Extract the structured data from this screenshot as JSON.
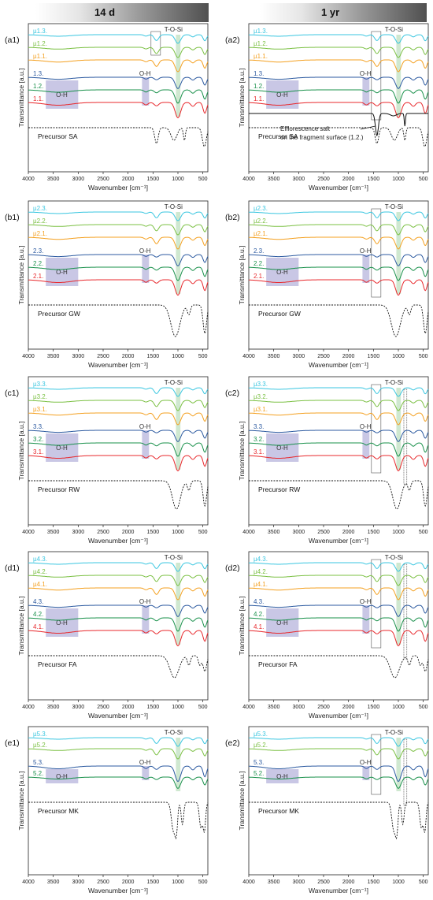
{
  "headers": {
    "left": "14 d",
    "right": "1 yr"
  },
  "colors": {
    "cyan": "#39c6e0",
    "lightgreen": "#7bc043",
    "orange": "#f4a020",
    "blue": "#2c5aa0",
    "green": "#18904a",
    "red": "#e8282c",
    "black": "#111111",
    "dotted": "#111111",
    "oh_box": "#b7b4dc",
    "tosi_box": "#bfe0c0"
  },
  "annotations": {
    "oh": "O-H",
    "tosi": "T-O-Si",
    "efflorescence": "Efflorescence salt on the fragment surface (1.2.)"
  },
  "chart_data": [
    {
      "type": "line",
      "panel": "(a1)",
      "precursor": "Precursor SA",
      "xlabel": "Wavenumber [cm⁻¹]",
      "ylabel": "Transmittance [a.u.]",
      "xlim": [
        4000,
        400
      ],
      "xticks": [
        4000,
        3500,
        3000,
        2500,
        2000,
        1500,
        1000,
        500
      ],
      "series": [
        {
          "name": "µ1.3.",
          "color": "cyan"
        },
        {
          "name": "µ1.2.",
          "color": "lightgreen"
        },
        {
          "name": "µ1.1.",
          "color": "orange"
        },
        {
          "name": "1.3.",
          "color": "blue"
        },
        {
          "name": "1.2.",
          "color": "green"
        },
        {
          "name": "1.1.",
          "color": "red"
        }
      ]
    },
    {
      "type": "line",
      "panel": "(a2)",
      "precursor": "Precursor SA",
      "xlabel": "Wavenumber [cm⁻¹]",
      "ylabel": "Transmittance [a.u.]",
      "xlim": [
        4000,
        400
      ],
      "xticks": [
        4000,
        3500,
        3000,
        2500,
        2000,
        1500,
        1000,
        500
      ],
      "series": [
        {
          "name": "µ1.3.",
          "color": "cyan"
        },
        {
          "name": "µ1.2.",
          "color": "lightgreen"
        },
        {
          "name": "µ1.1.",
          "color": "orange"
        },
        {
          "name": "1.3.",
          "color": "blue"
        },
        {
          "name": "1.2.",
          "color": "green"
        },
        {
          "name": "1.1.",
          "color": "red"
        }
      ]
    },
    {
      "type": "line",
      "panel": "(b1)",
      "precursor": "Precursor GW",
      "xlabel": "Wavenumber [cm⁻¹]",
      "ylabel": "Transmittance [a.u.]",
      "xlim": [
        4000,
        400
      ],
      "xticks": [
        4000,
        3500,
        3000,
        2500,
        2000,
        1500,
        1000,
        500
      ],
      "series": [
        {
          "name": "µ2.3.",
          "color": "cyan"
        },
        {
          "name": "µ2.2.",
          "color": "lightgreen"
        },
        {
          "name": "µ2.1.",
          "color": "orange"
        },
        {
          "name": "2.3.",
          "color": "blue"
        },
        {
          "name": "2.2.",
          "color": "green"
        },
        {
          "name": "2.1.",
          "color": "red"
        }
      ]
    },
    {
      "type": "line",
      "panel": "(b2)",
      "precursor": "Precursor GW",
      "xlabel": "Wavenumber [cm⁻¹]",
      "ylabel": "Transmittance [a.u.]",
      "xlim": [
        4000,
        400
      ],
      "xticks": [
        4000,
        3500,
        3000,
        2500,
        2000,
        1500,
        1000,
        500
      ],
      "series": [
        {
          "name": "µ2.3.",
          "color": "cyan"
        },
        {
          "name": "µ2.2.",
          "color": "lightgreen"
        },
        {
          "name": "µ2.1.",
          "color": "orange"
        },
        {
          "name": "2.3.",
          "color": "blue"
        },
        {
          "name": "2.2.",
          "color": "green"
        },
        {
          "name": "2.1.",
          "color": "red"
        }
      ]
    },
    {
      "type": "line",
      "panel": "(c1)",
      "precursor": "Precursor RW",
      "xlabel": "Wavenumber [cm⁻¹]",
      "ylabel": "Transmittance [a.u.]",
      "xlim": [
        4000,
        400
      ],
      "xticks": [
        4000,
        3500,
        3000,
        2500,
        2000,
        1500,
        1000,
        500
      ],
      "series": [
        {
          "name": "µ3.3.",
          "color": "cyan"
        },
        {
          "name": "µ3.2.",
          "color": "lightgreen"
        },
        {
          "name": "µ3.1.",
          "color": "orange"
        },
        {
          "name": "3.3.",
          "color": "blue"
        },
        {
          "name": "3.2.",
          "color": "green"
        },
        {
          "name": "3.1.",
          "color": "red"
        }
      ]
    },
    {
      "type": "line",
      "panel": "(c2)",
      "precursor": "Precursor RW",
      "xlabel": "Wavenumber [cm⁻¹]",
      "ylabel": "Transmittance [a.u.]",
      "xlim": [
        4000,
        400
      ],
      "xticks": [
        4000,
        3500,
        3000,
        2500,
        2000,
        1500,
        1000,
        500
      ],
      "series": [
        {
          "name": "µ3.3.",
          "color": "cyan"
        },
        {
          "name": "µ3.2.",
          "color": "lightgreen"
        },
        {
          "name": "µ3.1.",
          "color": "orange"
        },
        {
          "name": "3.3.",
          "color": "blue"
        },
        {
          "name": "3.2.",
          "color": "green"
        },
        {
          "name": "3.1.",
          "color": "red"
        }
      ]
    },
    {
      "type": "line",
      "panel": "(d1)",
      "precursor": "Precursor FA",
      "xlabel": "Wavenumber [cm⁻¹]",
      "ylabel": "Transmittance [a.u.]",
      "xlim": [
        4000,
        400
      ],
      "xticks": [
        4000,
        3500,
        3000,
        2500,
        2000,
        1500,
        1000,
        500
      ],
      "series": [
        {
          "name": "µ4.3.",
          "color": "cyan"
        },
        {
          "name": "µ4.2.",
          "color": "lightgreen"
        },
        {
          "name": "µ4.1.",
          "color": "orange"
        },
        {
          "name": "4.3.",
          "color": "blue"
        },
        {
          "name": "4.2.",
          "color": "green"
        },
        {
          "name": "4.1.",
          "color": "red"
        }
      ]
    },
    {
      "type": "line",
      "panel": "(d2)",
      "precursor": "Precursor FA",
      "xlabel": "Wavenumber [cm⁻¹]",
      "ylabel": "Transmittance [a.u.]",
      "xlim": [
        4000,
        400
      ],
      "xticks": [
        4000,
        3500,
        3000,
        2500,
        2000,
        1500,
        1000,
        500
      ],
      "series": [
        {
          "name": "µ4.3.",
          "color": "cyan"
        },
        {
          "name": "µ4.2.",
          "color": "lightgreen"
        },
        {
          "name": "µ4.1.",
          "color": "orange"
        },
        {
          "name": "4.3.",
          "color": "blue"
        },
        {
          "name": "4.2.",
          "color": "green"
        },
        {
          "name": "4.1.",
          "color": "red"
        }
      ]
    },
    {
      "type": "line",
      "panel": "(e1)",
      "precursor": "Precursor MK",
      "xlabel": "Wavenumber [cm⁻¹]",
      "ylabel": "Transmittance [a.u.]",
      "xlim": [
        4000,
        400
      ],
      "xticks": [
        4000,
        3500,
        3000,
        2500,
        2000,
        1500,
        1000,
        500
      ],
      "series": [
        {
          "name": "µ5.3.",
          "color": "cyan"
        },
        {
          "name": "µ5.2.",
          "color": "lightgreen"
        },
        {
          "name": "5.3.",
          "color": "blue"
        },
        {
          "name": "5.2.",
          "color": "green"
        }
      ]
    },
    {
      "type": "line",
      "panel": "(e2)",
      "precursor": "Precursor MK",
      "xlabel": "Wavenumber [cm⁻¹]",
      "ylabel": "Transmittance [a.u.]",
      "xlim": [
        4000,
        400
      ],
      "xticks": [
        4000,
        3500,
        3000,
        2500,
        2000,
        1500,
        1000,
        500
      ],
      "series": [
        {
          "name": "µ5.3.",
          "color": "cyan"
        },
        {
          "name": "µ5.2.",
          "color": "lightgreen"
        },
        {
          "name": "5.3.",
          "color": "blue"
        },
        {
          "name": "5.2.",
          "color": "green"
        }
      ]
    }
  ]
}
